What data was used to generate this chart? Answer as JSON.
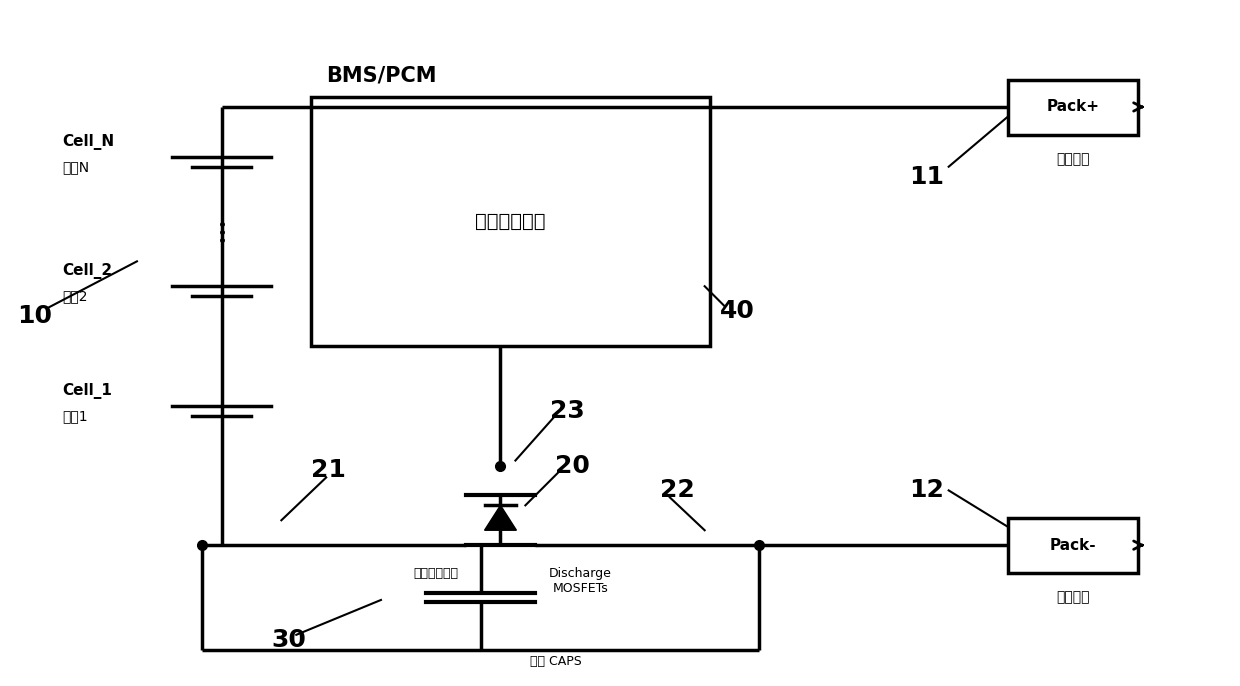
{
  "bg_color": "#ffffff",
  "line_color": "#000000",
  "line_width": 2.5,
  "fig_width": 12.4,
  "fig_height": 6.86,
  "labels": {
    "BMS_PCM": "BMS/PCM",
    "power_mgmt": "电源管理系统",
    "cell_N": "Cell_N",
    "cell_N_cn": "电芯N",
    "cell_2": "Cell_2",
    "cell_2_cn": "电芯2",
    "cell_1": "Cell_1",
    "cell_1_cn": "电芯1",
    "pack_plus": "Pack+",
    "pack_plus_cn": "电池正极",
    "pack_minus": "Pack-",
    "pack_minus_cn": "电池负极",
    "discharge_mosfet_cn": "放电场效应管",
    "discharge_mosfets": "Discharge\nMOSFETs",
    "cap_label": "电容 CAPS",
    "num_10": "10",
    "num_11": "11",
    "num_12": "12",
    "num_20": "20",
    "num_21": "21",
    "num_22": "22",
    "num_23": "23",
    "num_30": "30",
    "num_40": "40"
  }
}
